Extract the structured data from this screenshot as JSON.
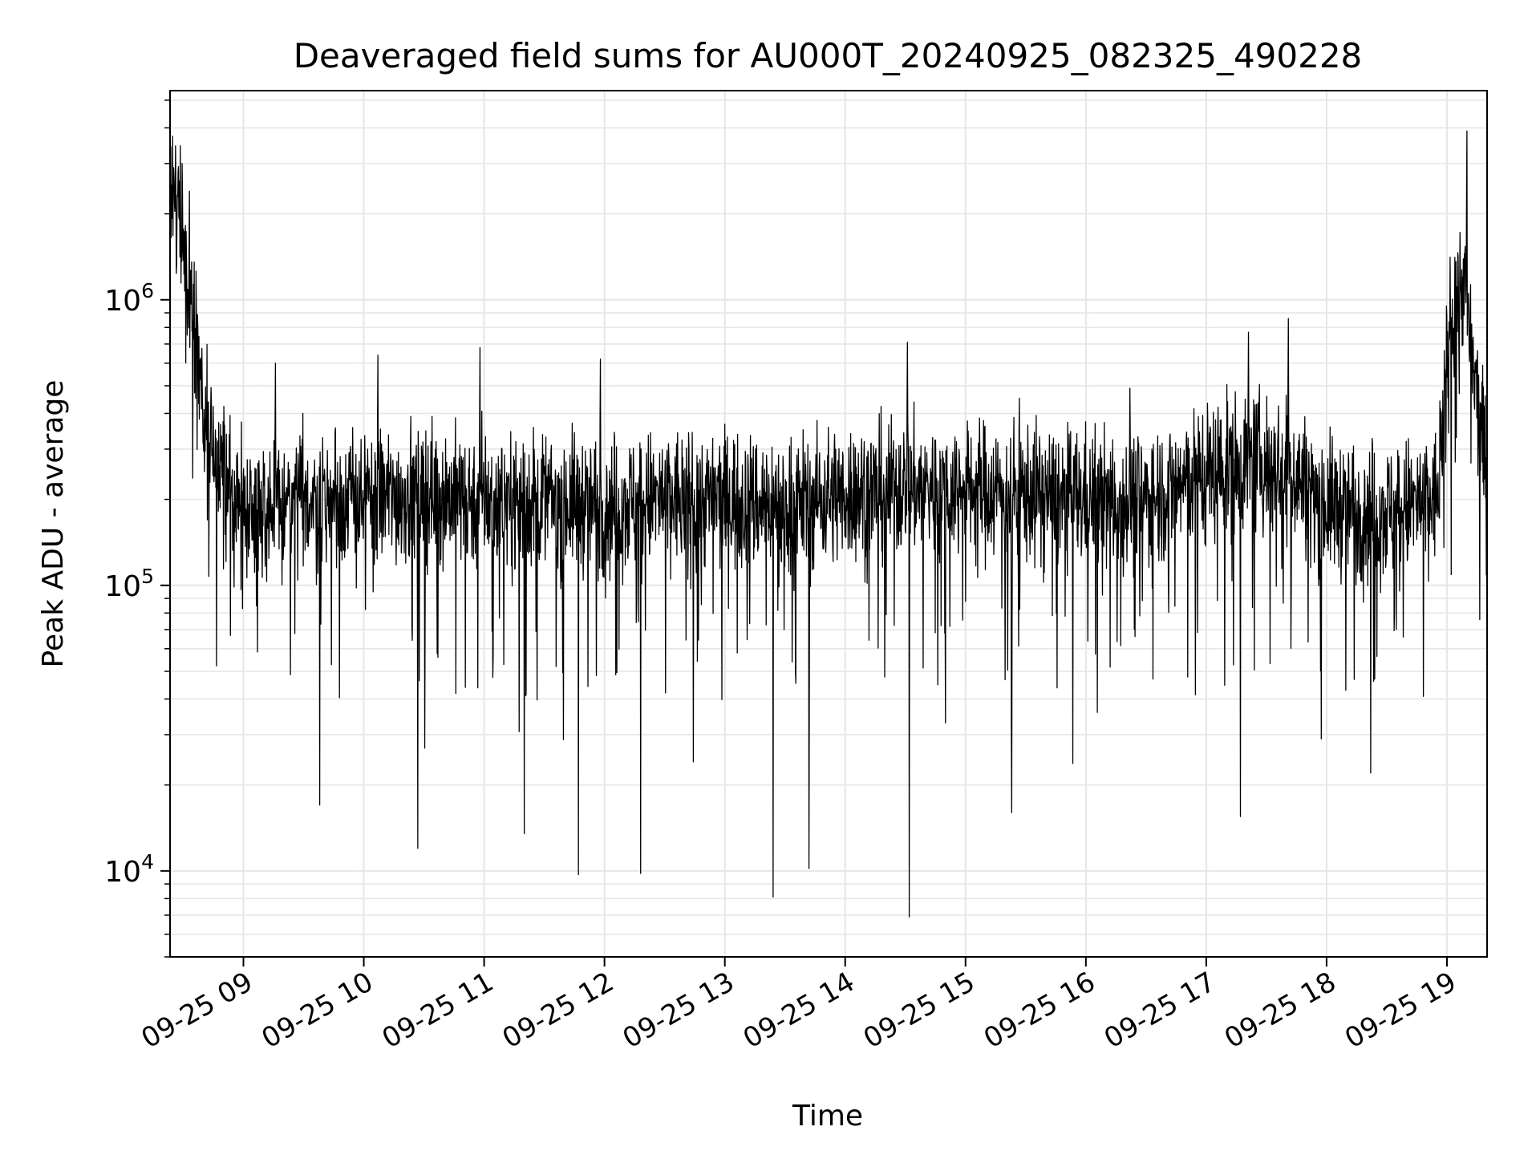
{
  "chart_data": {
    "type": "line",
    "title": "Deaveraged field sums for AU000T_20240925_082325_490228",
    "xlabel": "Time",
    "ylabel": "Peak ADU - average",
    "yscale": "log",
    "ylim": [
      5000,
      5400000
    ],
    "xlim": [
      "2024-09-25 08:23:25",
      "2024-09-25 19:20:00"
    ],
    "x_ticks": [
      "09-25 09",
      "09-25 10",
      "09-25 11",
      "09-25 12",
      "09-25 13",
      "09-25 14",
      "09-25 15",
      "09-25 16",
      "09-25 17",
      "09-25 18",
      "09-25 19"
    ],
    "y_ticks": [
      {
        "value": 10000,
        "base": "10",
        "exp": "4"
      },
      {
        "value": 100000,
        "base": "10",
        "exp": "5"
      },
      {
        "value": 1000000,
        "base": "10",
        "exp": "6"
      }
    ],
    "grid": true,
    "line_color": "#000000",
    "grid_color": "#e6e6e6",
    "series": [
      {
        "x": [
          "2024-09-25 08:23:25",
          "2024-09-25 08:28",
          "2024-09-25 08:32",
          "2024-09-25 08:36",
          "2024-09-25 08:40",
          "2024-09-25 08:45",
          "2024-09-25 08:55",
          "2024-09-25 09:10",
          "2024-09-25 09:30",
          "2024-09-25 10:00",
          "2024-09-25 10:30",
          "2024-09-25 11:00",
          "2024-09-25 11:30",
          "2024-09-25 12:00",
          "2024-09-25 12:30",
          "2024-09-25 13:00",
          "2024-09-25 13:30",
          "2024-09-25 14:00",
          "2024-09-25 14:30",
          "2024-09-25 15:00",
          "2024-09-25 15:30",
          "2024-09-25 16:00",
          "2024-09-25 16:30",
          "2024-09-25 17:00",
          "2024-09-25 17:20",
          "2024-09-25 17:40",
          "2024-09-25 18:00",
          "2024-09-25 18:30",
          "2024-09-25 18:55",
          "2024-09-25 19:02",
          "2024-09-25 19:08",
          "2024-09-25 19:14",
          "2024-09-25 19:20"
        ],
        "typical": [
          2000000,
          2400000,
          1200000,
          800000,
          400000,
          300000,
          200000,
          190000,
          200000,
          200000,
          210000,
          200000,
          200000,
          190000,
          200000,
          200000,
          190000,
          210000,
          220000,
          220000,
          210000,
          200000,
          200000,
          250000,
          270000,
          260000,
          190000,
          180000,
          200000,
          900000,
          1200000,
          500000,
          250000
        ],
        "peaks": [
          {
            "x": "2024-09-25 08:25",
            "y": 2700000
          },
          {
            "x": "2024-09-25 08:33",
            "y": 2400000
          },
          {
            "x": "2024-09-25 09:16",
            "y": 600000
          },
          {
            "x": "2024-09-25 10:07",
            "y": 640000
          },
          {
            "x": "2024-09-25 10:58",
            "y": 680000
          },
          {
            "x": "2024-09-25 11:58",
            "y": 620000
          },
          {
            "x": "2024-09-25 14:31",
            "y": 710000
          },
          {
            "x": "2024-09-25 16:22",
            "y": 490000
          },
          {
            "x": "2024-09-25 17:21",
            "y": 770000
          },
          {
            "x": "2024-09-25 17:41",
            "y": 860000
          },
          {
            "x": "2024-09-25 19:10",
            "y": 3900000
          }
        ],
        "dips": [
          {
            "x": "2024-09-25 09:38",
            "y": 17000
          },
          {
            "x": "2024-09-25 10:27",
            "y": 12000
          },
          {
            "x": "2024-09-25 11:20",
            "y": 13500
          },
          {
            "x": "2024-09-25 11:47",
            "y": 9700
          },
          {
            "x": "2024-09-25 12:18",
            "y": 9800
          },
          {
            "x": "2024-09-25 13:24",
            "y": 8100
          },
          {
            "x": "2024-09-25 13:42",
            "y": 10200
          },
          {
            "x": "2024-09-25 14:32",
            "y": 6900
          },
          {
            "x": "2024-09-25 15:23",
            "y": 16000
          },
          {
            "x": "2024-09-25 17:17",
            "y": 15500
          },
          {
            "x": "2024-09-25 18:22",
            "y": 22000
          }
        ]
      }
    ]
  }
}
